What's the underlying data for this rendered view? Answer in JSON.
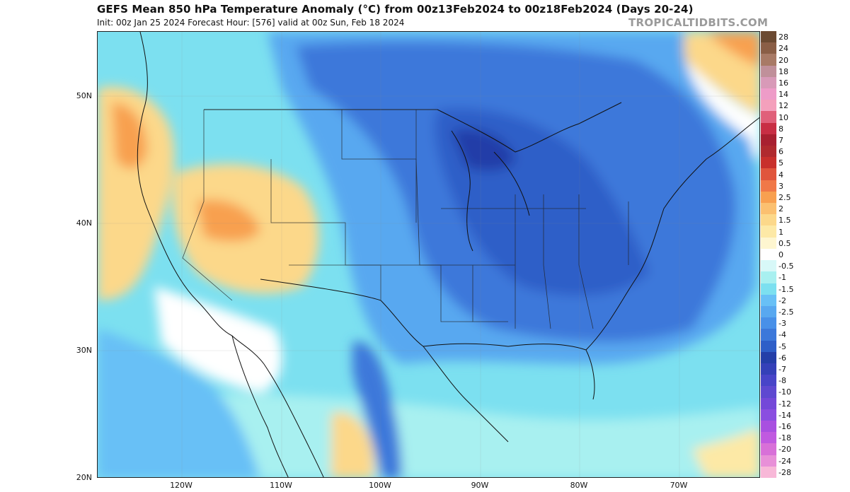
{
  "header": {
    "title": "GEFS Mean 850 hPa Temperature Anomaly (°C) from 00z13Feb2024 to 00z18Feb2024 (Days 20-24)",
    "subtitle": "Init: 00z Jan 25 2024   Forecast Hour: [576]   valid at 00z Sun, Feb 18 2024",
    "brand": "TROPICALTIDBITS.COM"
  },
  "axes": {
    "lat_labels": [
      "50N",
      "40N",
      "30N",
      "20N"
    ],
    "lon_labels": [
      "120W",
      "110W",
      "100W",
      "90W",
      "80W",
      "70W"
    ]
  },
  "colorbar": {
    "labels": [
      "28",
      "24",
      "20",
      "18",
      "16",
      "14",
      "12",
      "10",
      "8",
      "7",
      "6",
      "5",
      "4",
      "3",
      "2.5",
      "2",
      "1.5",
      "1",
      "0.5",
      "0",
      "-0.5",
      "-1",
      "-1.5",
      "-2",
      "-2.5",
      "-3",
      "-4",
      "-5",
      "-6",
      "-7",
      "-8",
      "-10",
      "-12",
      "-14",
      "-16",
      "-18",
      "-20",
      "-24",
      "-28"
    ],
    "colors": [
      "#6b4a32",
      "#8a5e46",
      "#a87a66",
      "#c0909a",
      "#d89ab8",
      "#ee9cc8",
      "#f4a0bc",
      "#e0607a",
      "#c82e44",
      "#a82030",
      "#b02a2e",
      "#c8302c",
      "#e0553c",
      "#f07848",
      "#f8a050",
      "#fbc070",
      "#fcd88a",
      "#fde9a6",
      "#fef6d0",
      "#ffffff",
      "#d8f8f8",
      "#a8f0f0",
      "#7ce0f0",
      "#68c0f6",
      "#58a8f0",
      "#4890e8",
      "#3c78da",
      "#2e5ec8",
      "#243ea8",
      "#3440b8",
      "#4844c8",
      "#5e48d0",
      "#7448d8",
      "#8a4ee0",
      "#a850e0",
      "#c05ae0",
      "#d870d8",
      "#e890d8",
      "#f8b8d8"
    ]
  },
  "map_region": {
    "lon_range": [
      -128,
      -61
    ],
    "lat_range": [
      20,
      55
    ]
  }
}
